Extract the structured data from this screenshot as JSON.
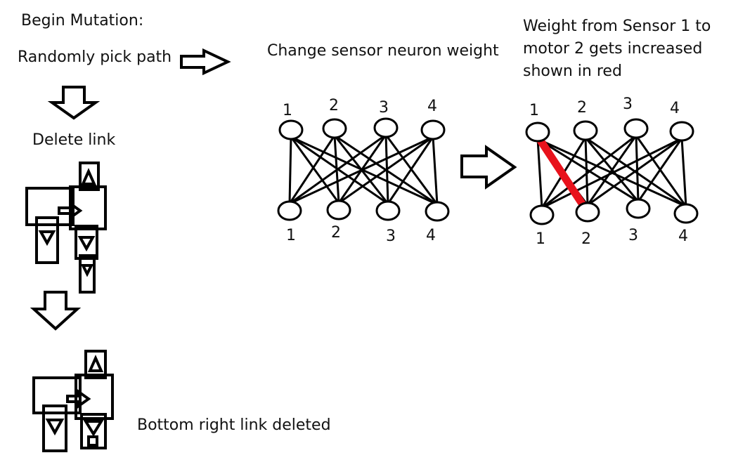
{
  "steps": {
    "begin": "Begin Mutation:",
    "pick_path": "Randomly pick path",
    "change_weight": "Change sensor neuron weight",
    "delete_link": "Delete link",
    "deleted_note": "Bottom right link deleted",
    "weight_note": "Weight from Sensor 1 to motor 2 gets increased shown in red"
  },
  "network_before": {
    "top_labels": [
      "1",
      "2",
      "3",
      "4"
    ],
    "bottom_labels": [
      "1",
      "2",
      "3",
      "4"
    ]
  },
  "network_after": {
    "top_labels": [
      "1",
      "2",
      "3",
      "4"
    ],
    "bottom_labels": [
      "1",
      "2",
      "3",
      "4"
    ],
    "highlighted_link": {
      "from_sensor": "1",
      "to_motor": "2"
    }
  },
  "colors": {
    "line": "#000000",
    "highlight": "#e8121c"
  }
}
